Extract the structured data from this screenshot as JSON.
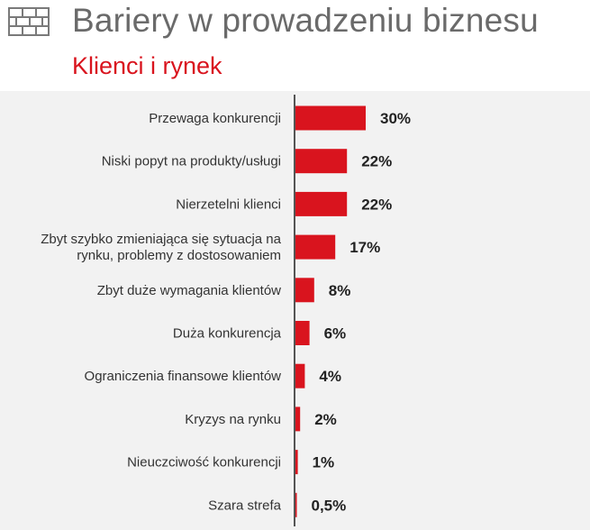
{
  "header": {
    "title": "Bariery w prowadzeniu biznesu",
    "subtitle": "Klienci i rynek",
    "icon": "brick-wall-icon"
  },
  "colors": {
    "bar": "#d9141e",
    "title": "#6a6a6a",
    "subtitle": "#d9141e",
    "background": "#f2f2f2",
    "axis": "#555555"
  },
  "chart_data": {
    "type": "bar",
    "orientation": "horizontal",
    "categories": [
      [
        "Przewaga konkurencji"
      ],
      [
        "Niski popyt na produkty/usługi"
      ],
      [
        "Nierzetelni klienci"
      ],
      [
        "Zbyt szybko zmieniająca się sytuacja na",
        "rynku, problemy z dostosowaniem"
      ],
      [
        "Zbyt duże wymagania klientów"
      ],
      [
        "Duża konkurencja"
      ],
      [
        "Ograniczenia finansowe klientów"
      ],
      [
        "Kryzys na rynku"
      ],
      [
        "Nieuczciwość konkurencji"
      ],
      [
        "Szara strefa"
      ]
    ],
    "values": [
      30,
      22,
      22,
      17,
      8,
      6,
      4,
      2,
      1,
      0.5
    ],
    "value_labels": [
      "30%",
      "22%",
      "22%",
      "17%",
      "8%",
      "6%",
      "4%",
      "2%",
      "1%",
      "0,5%"
    ],
    "unit": "%"
  }
}
